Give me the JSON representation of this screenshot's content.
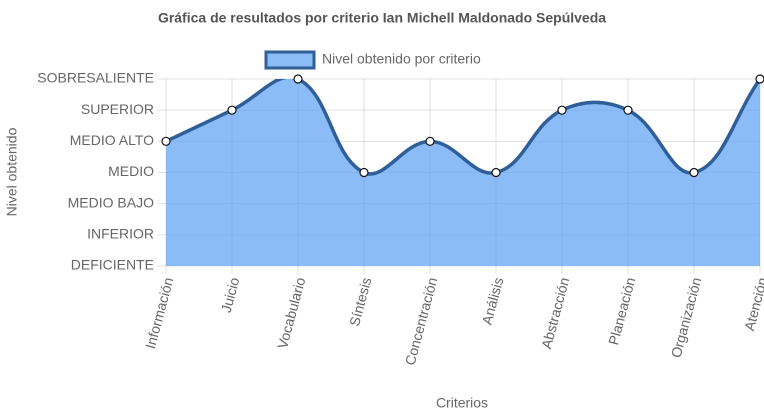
{
  "chart_data": {
    "type": "line",
    "title": "Gráfica de resultados por criterio Ian Michell Maldonado Sepúlveda",
    "x_label": "Criterios",
    "y_label": "Nivel obtenido",
    "categories": [
      "Información",
      "Juicio",
      "Vocabulario",
      "Síntesis",
      "Concentración",
      "Análisis",
      "Abstracción",
      "Planeación",
      "Organización",
      "Atención"
    ],
    "series": [
      {
        "name": "Nivel obtenido por criterio",
        "color": "#2f5f98",
        "fill": "rgba(100,165,245,0.75)",
        "values": [
          4,
          5,
          6,
          3,
          4,
          3,
          5,
          5,
          3,
          6
        ]
      }
    ],
    "ylim": [
      0,
      6
    ],
    "yticks": [
      {
        "value": 0,
        "label": "DEFICIENTE"
      },
      {
        "value": 1,
        "label": "INFERIOR"
      },
      {
        "value": 2,
        "label": "MEDIO BAJO"
      },
      {
        "value": 3,
        "label": "MEDIO"
      },
      {
        "value": 4,
        "label": "MEDIO ALTO"
      },
      {
        "value": 5,
        "label": "SUPERIOR"
      },
      {
        "value": 6,
        "label": "SOBRESALIENTE"
      }
    ],
    "grid": true,
    "legend": "top"
  }
}
